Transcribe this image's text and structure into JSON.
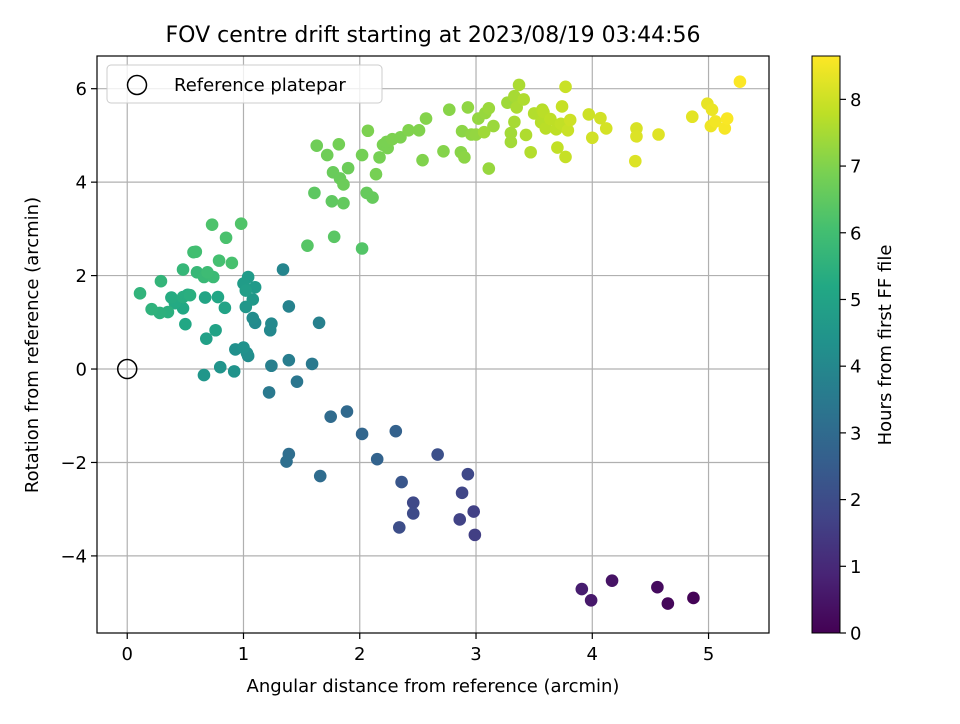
{
  "chart_data": {
    "type": "scatter",
    "title": "FOV centre drift starting at 2023/08/19 03:44:56",
    "xlabel": "Angular distance from reference (arcmin)",
    "ylabel": "Rotation from reference (arcmin)",
    "xlim": [
      -0.26,
      5.52
    ],
    "ylim": [
      -5.65,
      6.7
    ],
    "xticks": [
      0,
      1,
      2,
      3,
      4,
      5
    ],
    "xtick_labels": [
      "0",
      "1",
      "2",
      "3",
      "4",
      "5"
    ],
    "yticks": [
      -4,
      -2,
      0,
      2,
      4,
      6
    ],
    "ytick_labels": [
      "−4",
      "−2",
      "0",
      "2",
      "4",
      "6"
    ],
    "grid": true,
    "legend": {
      "placement": "top-left",
      "entries": [
        "Reference platepar"
      ]
    },
    "reference_point": {
      "x": 0,
      "y": 0,
      "label": "Reference platepar"
    },
    "colorbar": {
      "label": "Hours from first FF file",
      "range": [
        0,
        8.65
      ],
      "ticks": [
        0,
        1,
        2,
        3,
        4,
        5,
        6,
        7,
        8
      ],
      "tick_labels": [
        "0",
        "1",
        "2",
        "3",
        "4",
        "5",
        "6",
        "7",
        "8"
      ],
      "colormap": "viridis"
    },
    "points": [
      {
        "x": 4.87,
        "y": -4.9,
        "h": 0.05
      },
      {
        "x": 4.65,
        "y": -5.02,
        "h": 0.15
      },
      {
        "x": 4.56,
        "y": -4.67,
        "h": 0.25
      },
      {
        "x": 4.17,
        "y": -4.53,
        "h": 0.45
      },
      {
        "x": 3.99,
        "y": -4.95,
        "h": 0.6
      },
      {
        "x": 3.91,
        "y": -4.71,
        "h": 0.7
      },
      {
        "x": 2.99,
        "y": -3.55,
        "h": 1.6
      },
      {
        "x": 2.98,
        "y": -3.05,
        "h": 1.65
      },
      {
        "x": 2.86,
        "y": -3.22,
        "h": 1.7
      },
      {
        "x": 2.88,
        "y": -2.65,
        "h": 1.8
      },
      {
        "x": 2.93,
        "y": -2.25,
        "h": 1.85
      },
      {
        "x": 2.46,
        "y": -2.86,
        "h": 1.9
      },
      {
        "x": 2.46,
        "y": -3.09,
        "h": 1.95
      },
      {
        "x": 2.34,
        "y": -3.39,
        "h": 2.05
      },
      {
        "x": 2.67,
        "y": -1.83,
        "h": 2.1
      },
      {
        "x": 2.36,
        "y": -2.42,
        "h": 2.3
      },
      {
        "x": 2.31,
        "y": -1.33,
        "h": 2.7
      },
      {
        "x": 2.15,
        "y": -1.93,
        "h": 2.75
      },
      {
        "x": 2.02,
        "y": -1.39,
        "h": 2.85
      },
      {
        "x": 1.89,
        "y": -0.91,
        "h": 2.95
      },
      {
        "x": 1.75,
        "y": -1.02,
        "h": 3.0
      },
      {
        "x": 1.66,
        "y": -2.29,
        "h": 3.05
      },
      {
        "x": 1.39,
        "y": -1.82,
        "h": 3.1
      },
      {
        "x": 1.37,
        "y": -1.98,
        "h": 3.15
      },
      {
        "x": 1.46,
        "y": -0.27,
        "h": 3.4
      },
      {
        "x": 1.59,
        "y": 0.11,
        "h": 3.5
      },
      {
        "x": 1.22,
        "y": -0.5,
        "h": 3.5
      },
      {
        "x": 1.39,
        "y": 0.19,
        "h": 3.65
      },
      {
        "x": 1.24,
        "y": 0.07,
        "h": 3.7
      },
      {
        "x": 1.65,
        "y": 0.99,
        "h": 3.75
      },
      {
        "x": 1.39,
        "y": 1.34,
        "h": 3.8
      },
      {
        "x": 1.34,
        "y": 2.13,
        "h": 3.9
      },
      {
        "x": 1.23,
        "y": 0.83,
        "h": 4.0
      },
      {
        "x": 1.24,
        "y": 0.97,
        "h": 4.05
      },
      {
        "x": 1.1,
        "y": 0.99,
        "h": 4.1
      },
      {
        "x": 1.08,
        "y": 1.09,
        "h": 4.15
      },
      {
        "x": 1.04,
        "y": 0.28,
        "h": 4.2
      },
      {
        "x": 1.03,
        "y": 0.34,
        "h": 4.25
      },
      {
        "x": 0.93,
        "y": 0.42,
        "h": 4.3
      },
      {
        "x": 1.0,
        "y": 0.46,
        "h": 4.35
      },
      {
        "x": 0.92,
        "y": -0.05,
        "h": 4.4
      },
      {
        "x": 0.8,
        "y": 0.04,
        "h": 4.45
      },
      {
        "x": 0.66,
        "y": -0.13,
        "h": 4.5
      },
      {
        "x": 1.02,
        "y": 1.33,
        "h": 4.55
      },
      {
        "x": 1.08,
        "y": 1.49,
        "h": 4.6
      },
      {
        "x": 1.1,
        "y": 1.75,
        "h": 4.65
      },
      {
        "x": 1.04,
        "y": 1.97,
        "h": 4.7
      },
      {
        "x": 1.0,
        "y": 1.83,
        "h": 4.75
      },
      {
        "x": 1.02,
        "y": 1.68,
        "h": 4.8
      },
      {
        "x": 0.68,
        "y": 0.65,
        "h": 4.9
      },
      {
        "x": 0.76,
        "y": 0.83,
        "h": 4.95
      },
      {
        "x": 0.84,
        "y": 1.31,
        "h": 5.0
      },
      {
        "x": 0.67,
        "y": 1.53,
        "h": 5.05
      },
      {
        "x": 0.78,
        "y": 1.54,
        "h": 5.1
      },
      {
        "x": 0.5,
        "y": 0.96,
        "h": 5.15
      },
      {
        "x": 0.48,
        "y": 1.3,
        "h": 5.2
      },
      {
        "x": 0.41,
        "y": 1.41,
        "h": 5.25
      },
      {
        "x": 0.38,
        "y": 1.53,
        "h": 5.3
      },
      {
        "x": 0.48,
        "y": 1.54,
        "h": 5.35
      },
      {
        "x": 0.52,
        "y": 1.59,
        "h": 5.35
      },
      {
        "x": 0.54,
        "y": 1.58,
        "h": 5.4
      },
      {
        "x": 0.35,
        "y": 1.22,
        "h": 5.45
      },
      {
        "x": 0.28,
        "y": 1.2,
        "h": 5.5
      },
      {
        "x": 0.21,
        "y": 1.28,
        "h": 5.55
      },
      {
        "x": 0.11,
        "y": 1.62,
        "h": 5.6
      },
      {
        "x": 0.29,
        "y": 1.88,
        "h": 5.65
      },
      {
        "x": 0.48,
        "y": 2.13,
        "h": 5.7
      },
      {
        "x": 0.6,
        "y": 2.07,
        "h": 5.75
      },
      {
        "x": 0.66,
        "y": 1.97,
        "h": 5.8
      },
      {
        "x": 0.74,
        "y": 1.97,
        "h": 5.85
      },
      {
        "x": 0.69,
        "y": 2.07,
        "h": 5.9
      },
      {
        "x": 0.57,
        "y": 2.5,
        "h": 5.95
      },
      {
        "x": 0.59,
        "y": 2.51,
        "h": 6.0
      },
      {
        "x": 0.79,
        "y": 2.32,
        "h": 6.05
      },
      {
        "x": 0.9,
        "y": 2.27,
        "h": 6.1
      },
      {
        "x": 0.85,
        "y": 2.81,
        "h": 6.15
      },
      {
        "x": 0.73,
        "y": 3.09,
        "h": 6.2
      },
      {
        "x": 0.98,
        "y": 3.11,
        "h": 6.25
      },
      {
        "x": 2.02,
        "y": 2.58,
        "h": 6.3
      },
      {
        "x": 1.55,
        "y": 2.64,
        "h": 6.35
      },
      {
        "x": 1.78,
        "y": 2.83,
        "h": 6.4
      },
      {
        "x": 1.61,
        "y": 3.77,
        "h": 6.45
      },
      {
        "x": 1.76,
        "y": 3.59,
        "h": 6.5
      },
      {
        "x": 1.86,
        "y": 3.55,
        "h": 6.55
      },
      {
        "x": 2.06,
        "y": 3.77,
        "h": 6.6
      },
      {
        "x": 2.11,
        "y": 3.67,
        "h": 6.6
      },
      {
        "x": 1.77,
        "y": 4.21,
        "h": 6.65
      },
      {
        "x": 1.83,
        "y": 4.08,
        "h": 6.65
      },
      {
        "x": 1.86,
        "y": 3.95,
        "h": 6.7
      },
      {
        "x": 1.9,
        "y": 4.3,
        "h": 6.7
      },
      {
        "x": 1.63,
        "y": 4.78,
        "h": 6.75
      },
      {
        "x": 1.72,
        "y": 4.58,
        "h": 6.75
      },
      {
        "x": 1.82,
        "y": 4.81,
        "h": 6.8
      },
      {
        "x": 2.02,
        "y": 4.58,
        "h": 6.8
      },
      {
        "x": 2.14,
        "y": 4.17,
        "h": 6.85
      },
      {
        "x": 2.17,
        "y": 4.53,
        "h": 6.85
      },
      {
        "x": 2.2,
        "y": 4.8,
        "h": 6.9
      },
      {
        "x": 2.24,
        "y": 4.73,
        "h": 6.9
      },
      {
        "x": 2.23,
        "y": 4.86,
        "h": 6.9
      },
      {
        "x": 2.28,
        "y": 4.92,
        "h": 6.95
      },
      {
        "x": 2.35,
        "y": 4.96,
        "h": 6.95
      },
      {
        "x": 2.07,
        "y": 5.1,
        "h": 6.95
      },
      {
        "x": 2.42,
        "y": 5.11,
        "h": 7.0
      },
      {
        "x": 2.51,
        "y": 5.11,
        "h": 7.0
      },
      {
        "x": 2.54,
        "y": 4.47,
        "h": 7.0
      },
      {
        "x": 2.57,
        "y": 5.36,
        "h": 7.05
      },
      {
        "x": 2.72,
        "y": 4.66,
        "h": 7.05
      },
      {
        "x": 2.77,
        "y": 5.55,
        "h": 7.1
      },
      {
        "x": 2.87,
        "y": 4.64,
        "h": 7.1
      },
      {
        "x": 2.9,
        "y": 4.53,
        "h": 7.15
      },
      {
        "x": 2.88,
        "y": 5.09,
        "h": 7.15
      },
      {
        "x": 2.93,
        "y": 5.6,
        "h": 7.2
      },
      {
        "x": 2.96,
        "y": 5.02,
        "h": 7.2
      },
      {
        "x": 3.0,
        "y": 5.02,
        "h": 7.25
      },
      {
        "x": 3.02,
        "y": 5.36,
        "h": 7.25
      },
      {
        "x": 3.08,
        "y": 5.48,
        "h": 7.3
      },
      {
        "x": 3.11,
        "y": 4.29,
        "h": 7.3
      },
      {
        "x": 3.11,
        "y": 5.58,
        "h": 7.35
      },
      {
        "x": 3.15,
        "y": 5.2,
        "h": 7.35
      },
      {
        "x": 3.07,
        "y": 5.07,
        "h": 7.4
      },
      {
        "x": 3.27,
        "y": 5.7,
        "h": 7.4
      },
      {
        "x": 3.3,
        "y": 5.05,
        "h": 7.45
      },
      {
        "x": 3.3,
        "y": 4.86,
        "h": 7.45
      },
      {
        "x": 3.33,
        "y": 5.29,
        "h": 7.5
      },
      {
        "x": 3.33,
        "y": 5.84,
        "h": 7.5
      },
      {
        "x": 3.35,
        "y": 5.6,
        "h": 7.55
      },
      {
        "x": 3.37,
        "y": 6.08,
        "h": 7.55
      },
      {
        "x": 3.41,
        "y": 5.77,
        "h": 7.6
      },
      {
        "x": 3.43,
        "y": 5.01,
        "h": 7.6
      },
      {
        "x": 3.47,
        "y": 4.64,
        "h": 7.65
      },
      {
        "x": 3.5,
        "y": 5.47,
        "h": 7.65
      },
      {
        "x": 3.56,
        "y": 5.28,
        "h": 7.7
      },
      {
        "x": 3.57,
        "y": 5.55,
        "h": 7.7
      },
      {
        "x": 3.58,
        "y": 5.5,
        "h": 7.75
      },
      {
        "x": 3.6,
        "y": 5.15,
        "h": 7.75
      },
      {
        "x": 3.64,
        "y": 5.35,
        "h": 7.8
      },
      {
        "x": 3.69,
        "y": 5.13,
        "h": 7.8
      },
      {
        "x": 3.7,
        "y": 4.74,
        "h": 7.85
      },
      {
        "x": 3.73,
        "y": 5.25,
        "h": 7.85
      },
      {
        "x": 3.74,
        "y": 5.62,
        "h": 7.9
      },
      {
        "x": 3.77,
        "y": 4.54,
        "h": 7.9
      },
      {
        "x": 3.77,
        "y": 6.04,
        "h": 7.95
      },
      {
        "x": 3.79,
        "y": 5.11,
        "h": 7.95
      },
      {
        "x": 3.81,
        "y": 5.33,
        "h": 8.0
      },
      {
        "x": 3.97,
        "y": 5.45,
        "h": 8.0
      },
      {
        "x": 4.0,
        "y": 4.95,
        "h": 8.05
      },
      {
        "x": 4.07,
        "y": 5.37,
        "h": 8.05
      },
      {
        "x": 4.12,
        "y": 5.15,
        "h": 8.1
      },
      {
        "x": 4.38,
        "y": 5.15,
        "h": 8.15
      },
      {
        "x": 4.38,
        "y": 4.98,
        "h": 8.2
      },
      {
        "x": 4.37,
        "y": 4.45,
        "h": 8.2
      },
      {
        "x": 4.57,
        "y": 5.02,
        "h": 8.25
      },
      {
        "x": 4.86,
        "y": 5.4,
        "h": 8.3
      },
      {
        "x": 4.99,
        "y": 5.68,
        "h": 8.35
      },
      {
        "x": 5.03,
        "y": 5.55,
        "h": 8.4
      },
      {
        "x": 5.02,
        "y": 5.2,
        "h": 8.45
      },
      {
        "x": 5.06,
        "y": 5.3,
        "h": 8.5
      },
      {
        "x": 5.14,
        "y": 5.15,
        "h": 8.55
      },
      {
        "x": 5.16,
        "y": 5.36,
        "h": 8.6
      },
      {
        "x": 5.27,
        "y": 6.15,
        "h": 8.62
      }
    ]
  }
}
